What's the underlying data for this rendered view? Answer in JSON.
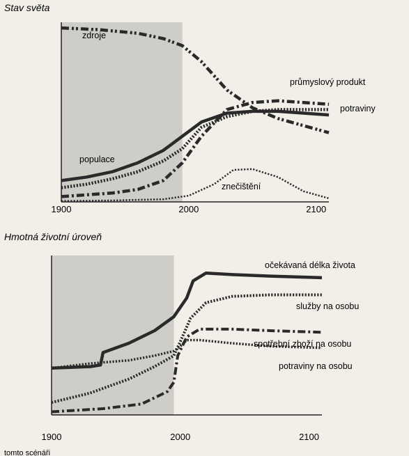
{
  "caption": "tomto scénáři",
  "chart_data": [
    {
      "type": "line",
      "title": "Stav světa",
      "xlabel": "",
      "ylabel": "",
      "x_ticks": [
        1900,
        2000,
        2100
      ],
      "xlim": [
        1900,
        2110
      ],
      "ylim": [
        0,
        100
      ],
      "shaded_region": [
        1900,
        1995
      ],
      "grid": false,
      "series": [
        {
          "name": "zdroje",
          "style": "dashdotdot",
          "width": 4.5,
          "x": [
            1900,
            1930,
            1960,
            1980,
            1995,
            2010,
            2030,
            2050,
            2070,
            2090,
            2110
          ],
          "y": [
            98,
            97,
            95,
            92,
            88,
            79,
            63,
            53,
            47,
            43,
            39
          ]
        },
        {
          "name": "průmyslový produkt",
          "style": "dashdot",
          "width": 4.5,
          "x": [
            1900,
            1920,
            1940,
            1960,
            1980,
            1995,
            2010,
            2030,
            2050,
            2070,
            2090,
            2110
          ],
          "y": [
            3,
            4,
            5,
            7,
            12,
            22,
            37,
            52,
            56,
            57,
            56,
            55
          ]
        },
        {
          "name": "potraviny",
          "style": "solid",
          "width": 4.5,
          "x": [
            1900,
            1920,
            1940,
            1960,
            1980,
            1995,
            2010,
            2030,
            2050,
            2070,
            2090,
            2110
          ],
          "y": [
            12,
            14,
            17,
            22,
            29,
            37,
            45,
            50,
            51,
            51,
            50,
            49
          ]
        },
        {
          "name": "populace",
          "style": "dotted",
          "width": 4.5,
          "x": [
            1900,
            1920,
            1940,
            1960,
            1980,
            1995,
            2010,
            2030,
            2050,
            2070,
            2090,
            2110
          ],
          "y": [
            8,
            10,
            13,
            17,
            23,
            30,
            42,
            48,
            51,
            52,
            52,
            52
          ]
        },
        {
          "name": "znečištění",
          "style": "dotted",
          "width": 2.5,
          "x": [
            1900,
            1940,
            1980,
            2000,
            2020,
            2035,
            2050,
            2070,
            2090,
            2110
          ],
          "y": [
            0.5,
            0.8,
            1.5,
            3.5,
            10,
            18,
            18.5,
            14,
            6,
            2
          ]
        }
      ],
      "labels": [
        "zdroje",
        "průmyslový produkt",
        "potraviny",
        "populace",
        "znečištění"
      ]
    },
    {
      "type": "line",
      "title": "Hmotná životní úroveň",
      "xlabel": "",
      "ylabel": "",
      "x_ticks": [
        1900,
        2000,
        2100
      ],
      "xlim": [
        1900,
        2110
      ],
      "ylim": [
        0,
        100
      ],
      "shaded_region": [
        1900,
        1995
      ],
      "grid": false,
      "series": [
        {
          "name": "očekávaná délka života",
          "style": "solid",
          "width": 4.5,
          "x": [
            1900,
            1930,
            1938,
            1940,
            1960,
            1980,
            1995,
            2005,
            2010,
            2020,
            2040,
            2070,
            2110
          ],
          "y": [
            30,
            31,
            32,
            40,
            46,
            54,
            63,
            75,
            86,
            91,
            90,
            89,
            88
          ]
        },
        {
          "name": "služby na osobu",
          "style": "dotted",
          "width": 4,
          "x": [
            1900,
            1930,
            1960,
            1980,
            1995,
            2000,
            2008,
            2020,
            2040,
            2070,
            2110
          ],
          "y": [
            8,
            14,
            23,
            31,
            38,
            47,
            62,
            72,
            76,
            77,
            77
          ]
        },
        {
          "name": "spotřební zboží na osobu",
          "style": "dashdot",
          "width": 4,
          "x": [
            1900,
            1940,
            1970,
            1990,
            1995,
            1998,
            2005,
            2015,
            2040,
            2070,
            2110
          ],
          "y": [
            2,
            4,
            7,
            15,
            21,
            38,
            50,
            55,
            55,
            54,
            53
          ]
        },
        {
          "name": "potraviny na osobu",
          "style": "dotted",
          "width": 3.5,
          "x": [
            1900,
            1930,
            1960,
            1980,
            1995,
            2000,
            2005,
            2015,
            2040,
            2070,
            2110
          ],
          "y": [
            30,
            33,
            35,
            38,
            41,
            44,
            48,
            48,
            46,
            44,
            43
          ]
        }
      ],
      "labels": [
        "očekávaná délka života",
        "služby na osobu",
        "spotřební zboží na osobu",
        "potraviny na osobu"
      ]
    }
  ]
}
